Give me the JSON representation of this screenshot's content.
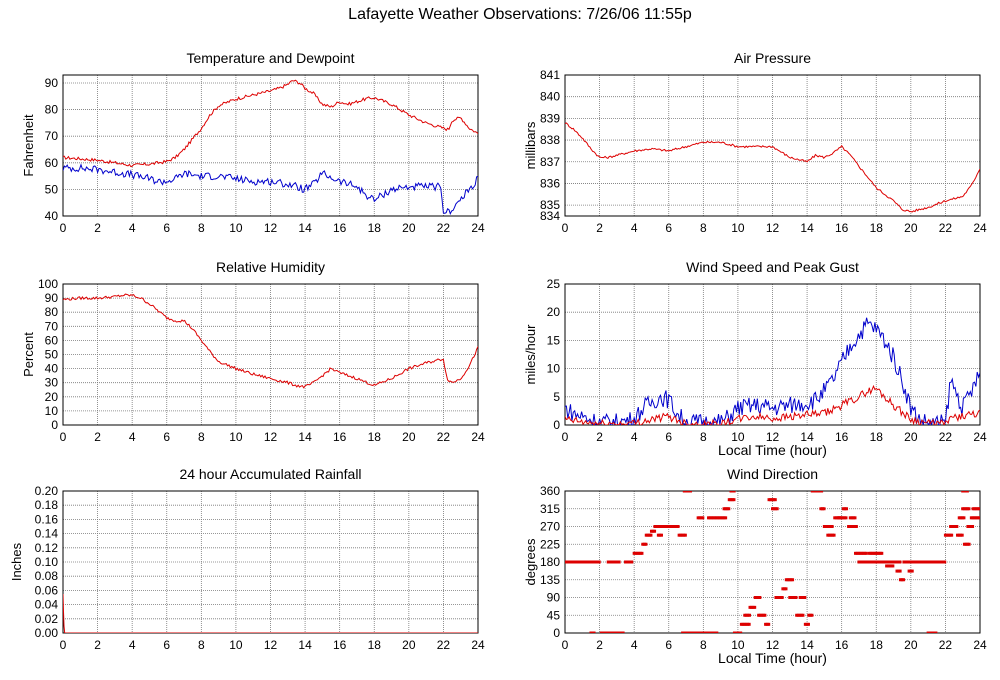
{
  "page": {
    "title": "Lafayette Weather Observations: 7/26/06 11:55p"
  },
  "colors": {
    "red": "#dd0000",
    "blue": "#0000cc",
    "grid": "#777777"
  },
  "chart_data": [
    {
      "id": "temp",
      "type": "line",
      "title": "Temperature and Dewpoint",
      "ylabel": "Fahrenheit",
      "xlabel": "",
      "xlim": [
        0,
        24
      ],
      "ylim": [
        40,
        93
      ],
      "xticks": [
        0,
        2,
        4,
        6,
        8,
        10,
        12,
        14,
        16,
        18,
        20,
        22,
        24
      ],
      "yticks": [
        40,
        50,
        60,
        70,
        80,
        90
      ],
      "grid": true,
      "series": [
        {
          "color": "#dd0000",
          "noise": 0.6,
          "x": [
            0,
            1,
            2,
            3,
            4,
            5,
            6,
            6.5,
            7,
            7.5,
            8,
            8.5,
            9,
            10,
            11,
            12,
            12.5,
            13,
            13.3,
            13.7,
            14,
            14.5,
            15,
            15.5,
            16,
            16.5,
            17,
            17.5,
            18,
            19,
            20,
            21,
            22,
            22.3,
            22.5,
            23,
            23.5,
            24
          ],
          "y": [
            62,
            61.5,
            61,
            60,
            59,
            59.5,
            60.5,
            62,
            65,
            69,
            73,
            78,
            81.5,
            84,
            85.5,
            87,
            88,
            89.5,
            91,
            90,
            88,
            86,
            82,
            81,
            83,
            82,
            83,
            84,
            84.5,
            82,
            78,
            75,
            73,
            72.5,
            76,
            77,
            73,
            71
          ]
        },
        {
          "color": "#0000cc",
          "noise": 1.4,
          "x": [
            0,
            1,
            2,
            3,
            4,
            5,
            5.5,
            6,
            6.5,
            7,
            8,
            9,
            10,
            11,
            12,
            13,
            14,
            14.5,
            15,
            16,
            17,
            17.5,
            18,
            19,
            20,
            21,
            21.8,
            22,
            22.3,
            23,
            24
          ],
          "y": [
            58,
            58,
            57.5,
            56.5,
            55.5,
            54,
            53,
            53,
            54,
            56,
            55,
            55,
            54,
            53,
            53,
            52,
            50,
            52,
            56,
            53,
            51,
            48,
            46,
            50,
            51,
            51,
            51,
            42,
            41.5,
            46,
            54
          ]
        }
      ]
    },
    {
      "id": "pressure",
      "type": "line",
      "title": "Air Pressure",
      "ylabel": "millibars",
      "xlabel": "",
      "xlim": [
        0,
        24
      ],
      "ylim": [
        834.5,
        841
      ],
      "xticks": [
        0,
        2,
        4,
        6,
        8,
        10,
        12,
        14,
        16,
        18,
        20,
        22,
        24
      ],
      "yticks": [
        834,
        835,
        836,
        837,
        838,
        839,
        840,
        841
      ],
      "grid": true,
      "series": [
        {
          "color": "#dd0000",
          "noise": 0.05,
          "x": [
            0,
            0.5,
            1,
            1.5,
            2,
            2.5,
            3,
            4,
            5,
            6,
            7,
            8,
            9,
            10,
            11,
            12,
            13,
            14,
            14.5,
            15,
            15.5,
            16,
            16.5,
            17,
            17.5,
            18,
            18.5,
            19,
            19.5,
            20,
            20.5,
            21,
            22,
            23,
            23.5,
            24
          ],
          "y": [
            838.8,
            838.5,
            838.1,
            837.6,
            837.2,
            837.2,
            837.3,
            837.5,
            837.6,
            837.5,
            837.7,
            837.9,
            837.9,
            837.7,
            837.7,
            837.7,
            837.2,
            837.0,
            837.3,
            837.2,
            837.4,
            837.7,
            837.3,
            836.8,
            836.3,
            835.8,
            835.5,
            835.2,
            834.8,
            834.7,
            834.8,
            834.9,
            835.2,
            835.4,
            835.9,
            836.7
          ]
        }
      ]
    },
    {
      "id": "humidity",
      "type": "line",
      "title": "Relative Humidity",
      "ylabel": "Percent",
      "xlabel": "",
      "xlim": [
        0,
        24
      ],
      "ylim": [
        0,
        100
      ],
      "xticks": [
        0,
        2,
        4,
        6,
        8,
        10,
        12,
        14,
        16,
        18,
        20,
        22,
        24
      ],
      "yticks": [
        0,
        10,
        20,
        30,
        40,
        50,
        60,
        70,
        80,
        90,
        100
      ],
      "grid": true,
      "series": [
        {
          "color": "#dd0000",
          "noise": 1.0,
          "x": [
            0,
            1,
            2,
            3,
            3.5,
            4,
            4.5,
            5,
            5.5,
            6,
            6.5,
            7,
            7.5,
            8,
            8.5,
            9,
            10,
            11,
            12,
            13,
            13.5,
            14,
            14.5,
            15,
            15.5,
            16,
            17,
            18,
            19,
            20,
            21,
            22,
            22.2,
            22.5,
            23,
            23.5,
            24
          ],
          "y": [
            89,
            90,
            90,
            91,
            92,
            92,
            90,
            86,
            81,
            76,
            74,
            74,
            68,
            60,
            52,
            45,
            40,
            36,
            33,
            30,
            28,
            27,
            30,
            35,
            40,
            37,
            33,
            28,
            33,
            40,
            44,
            47,
            33,
            30,
            33,
            42,
            55
          ]
        }
      ]
    },
    {
      "id": "wind",
      "type": "line",
      "title": "Wind Speed and Peak Gust",
      "ylabel": "miles/hour",
      "xlabel": "Local Time (hour)",
      "xlim": [
        0,
        24
      ],
      "ylim": [
        0,
        25
      ],
      "xticks": [
        0,
        2,
        4,
        6,
        8,
        10,
        12,
        14,
        16,
        18,
        20,
        22,
        24
      ],
      "yticks": [
        0,
        5,
        10,
        15,
        20,
        25
      ],
      "grid": true,
      "series": [
        {
          "color": "#0000cc",
          "noise": 1.6,
          "x": [
            0,
            0.5,
            1,
            1.5,
            2,
            3,
            4,
            4.5,
            5,
            5.5,
            6,
            6.5,
            7,
            8,
            9,
            9.5,
            10,
            11,
            12,
            13,
            14,
            14.5,
            15,
            15.5,
            16,
            16.5,
            17,
            17.5,
            18,
            18.5,
            19,
            19.5,
            20,
            20.5,
            21,
            22,
            22.3,
            23,
            23.5,
            24
          ],
          "y": [
            3,
            2,
            1.5,
            1,
            0.5,
            0.5,
            1,
            3,
            4,
            5,
            4.5,
            2,
            0.5,
            0.5,
            0.5,
            1.5,
            3,
            3.5,
            3,
            3.5,
            4,
            4.5,
            6,
            8,
            11,
            14,
            16,
            18,
            17,
            15,
            12,
            8,
            3,
            1,
            0.3,
            0.3,
            8,
            3,
            6,
            9
          ]
        },
        {
          "color": "#dd0000",
          "noise": 0.7,
          "x": [
            0,
            1,
            2,
            3,
            4,
            5,
            6,
            7,
            8,
            9,
            10,
            11,
            12,
            13,
            14,
            15,
            16,
            17,
            17.5,
            18,
            18.5,
            19,
            20,
            21,
            22,
            22.5,
            23,
            24
          ],
          "y": [
            1,
            0.5,
            0.2,
            0.2,
            0.3,
            1,
            1.5,
            0.3,
            0.2,
            0.2,
            1,
            1.5,
            1.2,
            1.5,
            1.8,
            2,
            3.5,
            5,
            6,
            6.5,
            5,
            3.5,
            1,
            0.3,
            0.2,
            1.5,
            1.5,
            2
          ]
        }
      ]
    },
    {
      "id": "rain",
      "type": "line",
      "title": "24 hour Accumulated Rainfall",
      "ylabel": "Inches",
      "xlabel": "",
      "xlim": [
        0,
        24
      ],
      "ylim": [
        0,
        0.2
      ],
      "xticks": [
        0,
        2,
        4,
        6,
        8,
        10,
        12,
        14,
        16,
        18,
        20,
        22,
        24
      ],
      "yticks": [
        0.0,
        0.02,
        0.04,
        0.06,
        0.08,
        0.1,
        0.12,
        0.14,
        0.16,
        0.18,
        0.2
      ],
      "ytickdecimals": 2,
      "grid": true,
      "series": [
        {
          "color": "#dd0000",
          "noise": 0,
          "x": [
            0,
            0.03,
            0.06,
            0.1,
            24
          ],
          "y": [
            0.055,
            0.03,
            0.01,
            0,
            0
          ]
        }
      ]
    },
    {
      "id": "direction",
      "type": "scatter",
      "title": "Wind Direction",
      "ylabel": "degrees",
      "xlabel": "Local Time (hour)",
      "xlim": [
        0,
        24
      ],
      "ylim": [
        0,
        360
      ],
      "xticks": [
        0,
        2,
        4,
        6,
        8,
        10,
        12,
        14,
        16,
        18,
        20,
        22,
        24
      ],
      "yticks": [
        0,
        45,
        90,
        135,
        180,
        225,
        270,
        315,
        360
      ],
      "grid": true,
      "series": [
        {
          "color": "#dd0000",
          "segments": [
            [
              0,
              2,
              180
            ],
            [
              1.5,
              1.7,
              0
            ],
            [
              2.1,
              3.4,
              0
            ],
            [
              2.5,
              3.2,
              180
            ],
            [
              3.5,
              3.9,
              180
            ],
            [
              4.0,
              4.5,
              202
            ],
            [
              4.5,
              4.7,
              225
            ],
            [
              4.7,
              5.0,
              248
            ],
            [
              5.0,
              5.2,
              258
            ],
            [
              5.2,
              6.0,
              270
            ],
            [
              5.4,
              5.6,
              248
            ],
            [
              6.0,
              6.6,
              270
            ],
            [
              6.6,
              7.0,
              248
            ],
            [
              6.9,
              7.3,
              360
            ],
            [
              6.8,
              8.8,
              0
            ],
            [
              7.7,
              8.0,
              292
            ],
            [
              8.3,
              9.3,
              292
            ],
            [
              9.2,
              9.5,
              315
            ],
            [
              9.5,
              9.8,
              338
            ],
            [
              9.6,
              9.8,
              360
            ],
            [
              9.8,
              10.2,
              0
            ],
            [
              10.2,
              10.7,
              22
            ],
            [
              10.4,
              10.7,
              45
            ],
            [
              10.7,
              11.0,
              65
            ],
            [
              11.0,
              11.3,
              90
            ],
            [
              11.2,
              11.6,
              45
            ],
            [
              11.6,
              11.8,
              22
            ],
            [
              11.8,
              12.2,
              338
            ],
            [
              12.0,
              12.3,
              315
            ],
            [
              12.2,
              12.6,
              90
            ],
            [
              12.6,
              12.8,
              112
            ],
            [
              12.8,
              13.2,
              135
            ],
            [
              13.0,
              13.4,
              90
            ],
            [
              13.4,
              13.8,
              45
            ],
            [
              13.6,
              13.9,
              90
            ],
            [
              13.9,
              14.1,
              22
            ],
            [
              14.1,
              14.3,
              45
            ],
            [
              14.3,
              14.9,
              360
            ],
            [
              14.8,
              15.0,
              315
            ],
            [
              15.0,
              15.5,
              270
            ],
            [
              15.2,
              15.6,
              248
            ],
            [
              15.6,
              16.0,
              292
            ],
            [
              15.8,
              16.3,
              292
            ],
            [
              16.1,
              16.3,
              315
            ],
            [
              16.4,
              16.9,
              270
            ],
            [
              16.5,
              16.8,
              292
            ],
            [
              16.8,
              17.5,
              202
            ],
            [
              17.0,
              19.0,
              180
            ],
            [
              17.6,
              18.4,
              202
            ],
            [
              18.6,
              19.0,
              170
            ],
            [
              19.1,
              19.4,
              180
            ],
            [
              19.2,
              19.4,
              157
            ],
            [
              19.4,
              19.6,
              135
            ],
            [
              19.6,
              20.0,
              180
            ],
            [
              19.9,
              20.1,
              157
            ],
            [
              20.0,
              21.6,
              180
            ],
            [
              21.0,
              21.5,
              0
            ],
            [
              21.6,
              22.0,
              180
            ],
            [
              22.0,
              22.4,
              248
            ],
            [
              22.3,
              22.7,
              270
            ],
            [
              22.7,
              23.0,
              248
            ],
            [
              22.8,
              23.1,
              292
            ],
            [
              23.0,
              23.3,
              360
            ],
            [
              23.1,
              23.4,
              225
            ],
            [
              23.3,
              23.6,
              270
            ],
            [
              23.5,
              24.0,
              292
            ],
            [
              23.6,
              24.0,
              315
            ],
            [
              23.0,
              23.4,
              315
            ]
          ]
        }
      ]
    }
  ]
}
